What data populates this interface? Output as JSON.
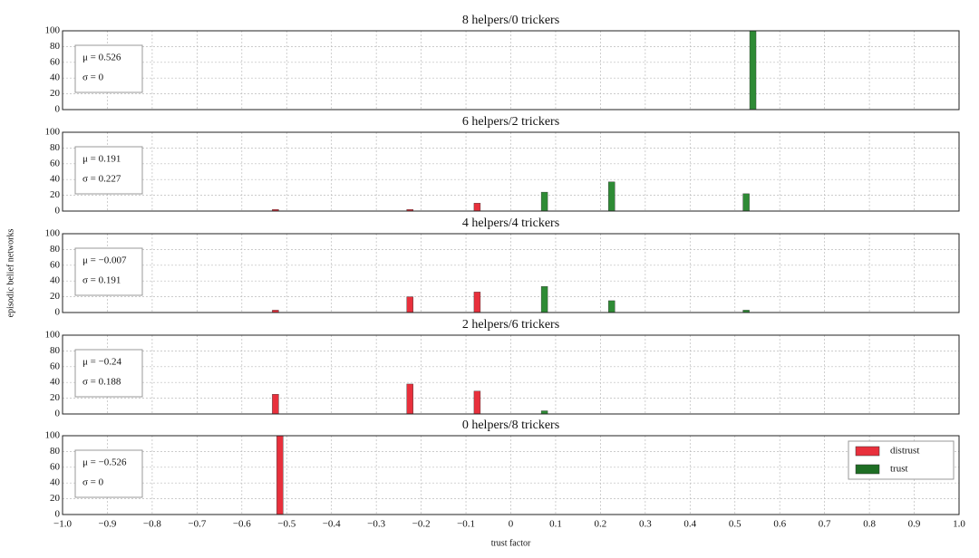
{
  "chart_data": [
    {
      "type": "bar",
      "title": "8 helpers/0 trickers",
      "xlim": [
        -1,
        1
      ],
      "ylim": [
        0,
        100
      ],
      "yticks": [
        0,
        20,
        40,
        60,
        80,
        100
      ],
      "grid": true,
      "annotations": [
        "μ = 0.526",
        "σ = 0"
      ],
      "series": [
        {
          "color": "#2e8b35",
          "x": [
            0.54
          ],
          "values": [
            100
          ]
        }
      ]
    },
    {
      "type": "bar",
      "title": "6 helpers/2 trickers",
      "xlim": [
        -1,
        1
      ],
      "ylim": [
        0,
        100
      ],
      "yticks": [
        0,
        20,
        40,
        60,
        80,
        100
      ],
      "grid": true,
      "annotations": [
        "μ = 0.191",
        "σ = 0.227"
      ],
      "series": [
        {
          "color": "#e8303c",
          "x": [
            -0.525,
            -0.225,
            -0.075
          ],
          "values": [
            2,
            2,
            10
          ]
        },
        {
          "color": "#2e8b35",
          "x": [
            0.075,
            0.225,
            0.525
          ],
          "values": [
            24,
            37,
            22
          ]
        }
      ]
    },
    {
      "type": "bar",
      "title": "4 helpers/4 trickers",
      "xlim": [
        -1,
        1
      ],
      "ylim": [
        0,
        100
      ],
      "yticks": [
        0,
        20,
        40,
        60,
        80,
        100
      ],
      "grid": true,
      "ylabel": "episodic belief networks",
      "annotations": [
        "μ = −0.007",
        "σ = 0.191"
      ],
      "series": [
        {
          "color": "#e8303c",
          "x": [
            -0.525,
            -0.225,
            -0.075
          ],
          "values": [
            3,
            20,
            26
          ]
        },
        {
          "color": "#2e8b35",
          "x": [
            0.075,
            0.225,
            0.525
          ],
          "values": [
            33,
            15,
            3
          ]
        }
      ]
    },
    {
      "type": "bar",
      "title": "2 helpers/6 trickers",
      "xlim": [
        -1,
        1
      ],
      "ylim": [
        0,
        100
      ],
      "yticks": [
        0,
        20,
        40,
        60,
        80,
        100
      ],
      "grid": true,
      "annotations": [
        "μ = −0.24",
        "σ = 0.188"
      ],
      "series": [
        {
          "color": "#e8303c",
          "x": [
            -0.525,
            -0.225,
            -0.075
          ],
          "values": [
            25,
            38,
            29
          ]
        },
        {
          "color": "#2e8b35",
          "x": [
            0.075
          ],
          "values": [
            4
          ]
        }
      ]
    },
    {
      "type": "bar",
      "title": "0 helpers/8 trickers",
      "xlim": [
        -1,
        1
      ],
      "ylim": [
        0,
        100
      ],
      "yticks": [
        0,
        20,
        40,
        60,
        80,
        100
      ],
      "grid": true,
      "xlabel": "trust factor",
      "legend": "upper right",
      "annotations": [
        "μ = −0.526",
        "σ = 0"
      ],
      "xticks": [
        {
          "value": -1,
          "label": "−1.0"
        },
        {
          "value": -0.9,
          "label": "−0.9"
        },
        {
          "value": -0.8,
          "label": "−0.8"
        },
        {
          "value": -0.7,
          "label": "−0.7"
        },
        {
          "value": -0.6,
          "label": "−0.6"
        },
        {
          "value": -0.5,
          "label": "−0.5"
        },
        {
          "value": -0.4,
          "label": "−0.4"
        },
        {
          "value": -0.3,
          "label": "−0.3"
        },
        {
          "value": -0.2,
          "label": "−0.2"
        },
        {
          "value": -0.1,
          "label": "−0.1"
        },
        0,
        0.1,
        0.2,
        0.3,
        0.4,
        0.5,
        0.6,
        0.7,
        0.8,
        0.9,
        {
          "value": 1,
          "label": "1.0"
        }
      ],
      "series": [
        {
          "name": "distrust",
          "color": "#e8303c",
          "x": [
            -0.515
          ],
          "values": [
            100
          ]
        },
        {
          "name": "trust",
          "color": "#1e6e24",
          "x": [],
          "values": []
        }
      ]
    }
  ]
}
